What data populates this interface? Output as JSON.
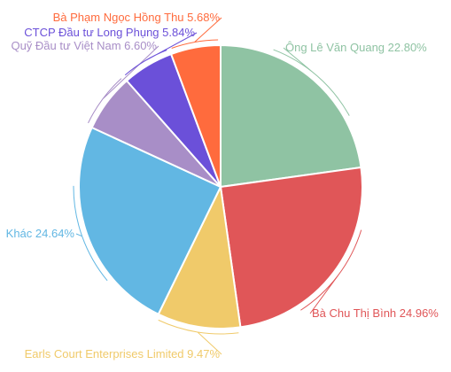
{
  "chart_data": {
    "type": "pie",
    "slices": [
      {
        "label": "Ông Lê Văn Quang",
        "value": 22.8,
        "color": "#8fc3a3",
        "anchor": "start",
        "side": "right"
      },
      {
        "label": "Bà Chu Thị Bình",
        "value": 24.96,
        "color": "#e05658",
        "anchor": "start",
        "side": "right"
      },
      {
        "label": "Earls Court Enterprises Limited",
        "value": 9.47,
        "color": "#f0ca6a",
        "anchor": "end",
        "side": "left"
      },
      {
        "label": "Khác",
        "value": 24.64,
        "color": "#62b7e3",
        "anchor": "end",
        "side": "left"
      },
      {
        "label": "Quỹ Đầu tư Việt Nam",
        "value": 6.6,
        "color": "#a88ec7",
        "anchor": "end",
        "side": "left"
      },
      {
        "label": "CTCP Đầu tư Long Phụng",
        "value": 5.84,
        "color": "#6b50d9",
        "anchor": "end",
        "side": "left"
      },
      {
        "label": "Bà Phạm Ngọc Hồng Thu",
        "value": 5.68,
        "color": "#ff6b3d",
        "anchor": "end",
        "side": "left"
      }
    ],
    "value_suffix": "%",
    "start_angle_deg": 0,
    "direction": "clockwise",
    "legend": "none"
  }
}
